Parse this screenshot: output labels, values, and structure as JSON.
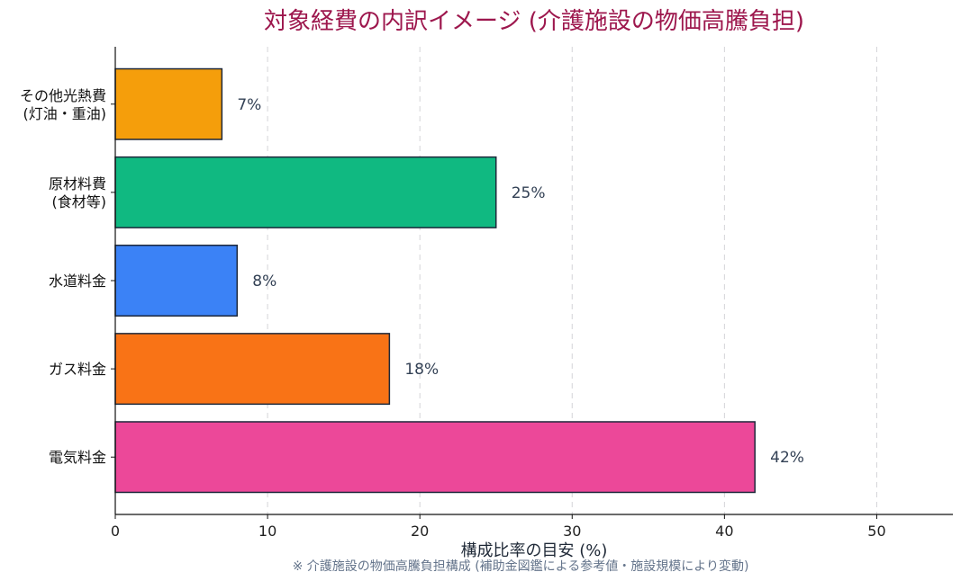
{
  "chart_data": {
    "type": "bar",
    "orientation": "horizontal",
    "title": "対象経費の内訳イメージ (介護施設の物価高騰負担)",
    "xlabel": "構成比率の目安 (%)",
    "ylabel": "",
    "xlim": [
      0,
      55
    ],
    "xticks": [
      0,
      10,
      20,
      30,
      40,
      50
    ],
    "grid": "x-dashed",
    "note": "※ 介護施設の物価高騰負担構成 (補助金図鑑による参考値・施設規模により変動)",
    "categories": [
      [
        "その他光熱費",
        "(灯油・重油)"
      ],
      [
        "原材料費",
        "(食材等)"
      ],
      [
        "水道料金"
      ],
      [
        "ガス料金"
      ],
      [
        "電気料金"
      ]
    ],
    "values": [
      7,
      25,
      8,
      18,
      42
    ],
    "value_labels": [
      "7%",
      "25%",
      "8%",
      "18%",
      "42%"
    ],
    "colors": [
      "#f59e0b",
      "#10b981",
      "#3b82f6",
      "#f97316",
      "#ec4899"
    ],
    "edge_color": "#1e293b"
  }
}
